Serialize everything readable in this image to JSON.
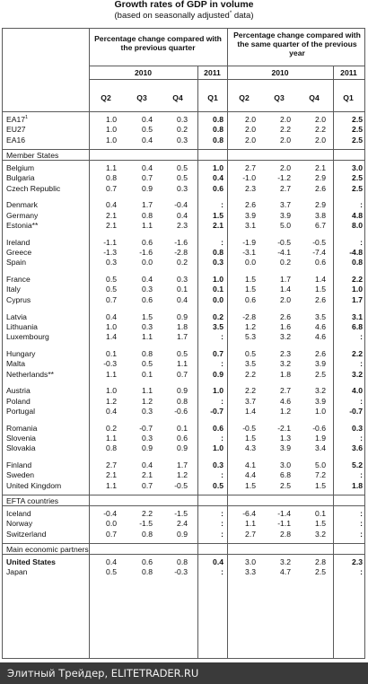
{
  "title": "Growth rates of GDP in volume",
  "subtitle_prefix": "(based on seasonally adjusted",
  "subtitle_mark": "*",
  "subtitle_suffix": " data)",
  "header": {
    "left_group": "Percentage change compared with the previous quarter",
    "right_group": "Percentage change compared with the same quarter of the previous year",
    "year_2010": "2010",
    "year_2011": "2011",
    "quarters": [
      "Q2",
      "Q3",
      "Q4",
      "Q1",
      "Q2",
      "Q3",
      "Q4",
      "Q1"
    ]
  },
  "sections": [
    {
      "title": "",
      "rows": [
        {
          "name": "EA17",
          "sup": "1",
          "values": [
            "1.0",
            "0.4",
            "0.3",
            "0.8",
            "2.0",
            "2.0",
            "2.0",
            "2.5"
          ]
        },
        {
          "name": "EU27",
          "sup": "",
          "values": [
            "1.0",
            "0.5",
            "0.2",
            "0.8",
            "2.0",
            "2.2",
            "2.2",
            "2.5"
          ]
        },
        {
          "name": "EA16",
          "sup": "",
          "values": [
            "1.0",
            "0.4",
            "0.3",
            "0.8",
            "2.0",
            "2.0",
            "2.0",
            "2.5"
          ]
        }
      ]
    },
    {
      "title": "Member States",
      "rows": [
        {
          "name": "Belgium",
          "values": [
            "1.1",
            "0.4",
            "0.5",
            "1.0",
            "2.7",
            "2.0",
            "2.1",
            "3.0"
          ]
        },
        {
          "name": "Bulgaria",
          "values": [
            "0.8",
            "0.7",
            "0.5",
            "0.4",
            "-1.0",
            "-1.2",
            "2.9",
            "2.5"
          ]
        },
        {
          "name": "Czech Republic",
          "values": [
            "0.7",
            "0.9",
            "0.3",
            "0.6",
            "2.3",
            "2.7",
            "2.6",
            "2.5"
          ]
        },
        {
          "gap": true
        },
        {
          "name": "Denmark",
          "values": [
            "0.4",
            "1.7",
            "-0.4",
            ":",
            "2.6",
            "3.7",
            "2.9",
            ":"
          ]
        },
        {
          "name": "Germany",
          "values": [
            "2.1",
            "0.8",
            "0.4",
            "1.5",
            "3.9",
            "3.9",
            "3.8",
            "4.8"
          ]
        },
        {
          "name": "Estonia**",
          "values": [
            "2.1",
            "1.1",
            "2.3",
            "2.1",
            "3.1",
            "5.0",
            "6.7",
            "8.0"
          ]
        },
        {
          "gap": true
        },
        {
          "name": "Ireland",
          "values": [
            "-1.1",
            "0.6",
            "-1.6",
            ":",
            "-1.9",
            "-0.5",
            "-0.5",
            ":"
          ]
        },
        {
          "name": "Greece",
          "values": [
            "-1.3",
            "-1.6",
            "-2.8",
            "0.8",
            "-3.1",
            "-4.1",
            "-7.4",
            "-4.8"
          ]
        },
        {
          "name": "Spain",
          "values": [
            "0.3",
            "0.0",
            "0.2",
            "0.3",
            "0.0",
            "0.2",
            "0.6",
            "0.8"
          ]
        },
        {
          "gap": true
        },
        {
          "name": "France",
          "values": [
            "0.5",
            "0.4",
            "0.3",
            "1.0",
            "1.5",
            "1.7",
            "1.4",
            "2.2"
          ]
        },
        {
          "name": "Italy",
          "values": [
            "0.5",
            "0.3",
            "0.1",
            "0.1",
            "1.5",
            "1.4",
            "1.5",
            "1.0"
          ]
        },
        {
          "name": "Cyprus",
          "values": [
            "0.7",
            "0.6",
            "0.4",
            "0.0",
            "0.6",
            "2.0",
            "2.6",
            "1.7"
          ]
        },
        {
          "gap": true
        },
        {
          "name": "Latvia",
          "values": [
            "0.4",
            "1.5",
            "0.9",
            "0.2",
            "-2.8",
            "2.6",
            "3.5",
            "3.1"
          ]
        },
        {
          "name": "Lithuania",
          "values": [
            "1.0",
            "0.3",
            "1.8",
            "3.5",
            "1.2",
            "1.6",
            "4.6",
            "6.8"
          ]
        },
        {
          "name": "Luxembourg",
          "values": [
            "1.4",
            "1.1",
            "1.7",
            ":",
            "5.3",
            "3.2",
            "4.6",
            ":"
          ]
        },
        {
          "gap": true
        },
        {
          "name": "Hungary",
          "values": [
            "0.1",
            "0.8",
            "0.5",
            "0.7",
            "0.5",
            "2.3",
            "2.6",
            "2.2"
          ]
        },
        {
          "name": "Malta",
          "values": [
            "-0.3",
            "0.5",
            "1.1",
            ":",
            "3.5",
            "3.2",
            "3.9",
            ":"
          ]
        },
        {
          "name": "Netherlands**",
          "values": [
            "1.1",
            "0.1",
            "0.7",
            "0.9",
            "2.2",
            "1.8",
            "2.5",
            "3.2"
          ]
        },
        {
          "gap": true
        },
        {
          "name": "Austria",
          "values": [
            "1.0",
            "1.1",
            "0.9",
            "1.0",
            "2.2",
            "2.7",
            "3.2",
            "4.0"
          ]
        },
        {
          "name": "Poland",
          "values": [
            "1.2",
            "1.2",
            "0.8",
            ":",
            "3.7",
            "4.6",
            "3.9",
            ":"
          ]
        },
        {
          "name": "Portugal",
          "values": [
            "0.4",
            "0.3",
            "-0.6",
            "-0.7",
            "1.4",
            "1.2",
            "1.0",
            "-0.7"
          ]
        },
        {
          "gap": true
        },
        {
          "name": "Romania",
          "values": [
            "0.2",
            "-0.7",
            "0.1",
            "0.6",
            "-0.5",
            "-2.1",
            "-0.6",
            "0.3"
          ]
        },
        {
          "name": "Slovenia",
          "values": [
            "1.1",
            "0.3",
            "0.6",
            ":",
            "1.5",
            "1.3",
            "1.9",
            ":"
          ]
        },
        {
          "name": "Slovakia",
          "values": [
            "0.8",
            "0.9",
            "0.9",
            "1.0",
            "4.3",
            "3.9",
            "3.4",
            "3.6"
          ]
        },
        {
          "gap": true
        },
        {
          "name": "Finland",
          "values": [
            "2.7",
            "0.4",
            "1.7",
            "0.3",
            "4.1",
            "3.0",
            "5.0",
            "5.2"
          ]
        },
        {
          "name": "Sweden",
          "values": [
            "2.1",
            "2.1",
            "1.2",
            ":",
            "4.4",
            "6.8",
            "7.2",
            ":"
          ]
        },
        {
          "name": "United Kingdom",
          "values": [
            "1.1",
            "0.7",
            "-0.5",
            "0.5",
            "1.5",
            "2.5",
            "1.5",
            "1.8"
          ]
        }
      ]
    },
    {
      "title": "EFTA countries",
      "rows": [
        {
          "name": "Iceland",
          "values": [
            "-0.4",
            "2.2",
            "-1.5",
            ":",
            "-6.4",
            "-1.4",
            "0.1",
            ":"
          ]
        },
        {
          "name": "Norway",
          "values": [
            "0.0",
            "-1.5",
            "2.4",
            ":",
            "1.1",
            "-1.1",
            "1.5",
            ":"
          ]
        },
        {
          "name": "Switzerland",
          "values": [
            "0.7",
            "0.8",
            "0.9",
            ":",
            "2.7",
            "2.8",
            "3.2",
            ":"
          ]
        }
      ]
    },
    {
      "title": "Main economic partners",
      "rows": [
        {
          "name": "United States",
          "bold_name": true,
          "values": [
            "0.4",
            "0.6",
            "0.8",
            "0.4",
            "3.0",
            "3.2",
            "2.8",
            "2.3"
          ]
        },
        {
          "name": "Japan",
          "values": [
            "0.5",
            "0.8",
            "-0.3",
            ":",
            "3.3",
            "4.7",
            "2.5",
            ":"
          ]
        }
      ]
    }
  ],
  "footer_text": "Элитный Трейдер, ELITETRADER.RU"
}
